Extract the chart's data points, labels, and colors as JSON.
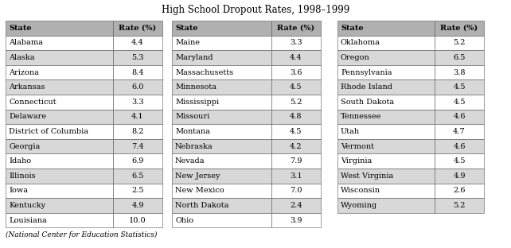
{
  "title": "High School Dropout Rates, 1998–1999",
  "footnote": "(National Center for Education Statistics)",
  "table1": {
    "headers": [
      "State",
      "Rate (%)"
    ],
    "rows": [
      [
        "Alabama",
        "4.4"
      ],
      [
        "Alaska",
        "5.3"
      ],
      [
        "Arizona",
        "8.4"
      ],
      [
        "Arkansas",
        "6.0"
      ],
      [
        "Connecticut",
        "3.3"
      ],
      [
        "Delaware",
        "4.1"
      ],
      [
        "District of Columbia",
        "8.2"
      ],
      [
        "Georgia",
        "7.4"
      ],
      [
        "Idaho",
        "6.9"
      ],
      [
        "Illinois",
        "6.5"
      ],
      [
        "Iowa",
        "2.5"
      ],
      [
        "Kentucky",
        "4.9"
      ],
      [
        "Louisiana",
        "10.0"
      ]
    ]
  },
  "table2": {
    "headers": [
      "State",
      "Rate (%)"
    ],
    "rows": [
      [
        "Maine",
        "3.3"
      ],
      [
        "Maryland",
        "4.4"
      ],
      [
        "Massachusetts",
        "3.6"
      ],
      [
        "Minnesota",
        "4.5"
      ],
      [
        "Mississippi",
        "5.2"
      ],
      [
        "Missouri",
        "4.8"
      ],
      [
        "Montana",
        "4.5"
      ],
      [
        "Nebraska",
        "4.2"
      ],
      [
        "Nevada",
        "7.9"
      ],
      [
        "New Jersey",
        "3.1"
      ],
      [
        "New Mexico",
        "7.0"
      ],
      [
        "North Dakota",
        "2.4"
      ],
      [
        "Ohio",
        "3.9"
      ]
    ]
  },
  "table3": {
    "headers": [
      "State",
      "Rate (%)"
    ],
    "rows": [
      [
        "Oklahoma",
        "5.2"
      ],
      [
        "Oregon",
        "6.5"
      ],
      [
        "Pennsylvania",
        "3.8"
      ],
      [
        "Rhode Island",
        "4.5"
      ],
      [
        "South Dakota",
        "4.5"
      ],
      [
        "Tennessee",
        "4.6"
      ],
      [
        "Utah",
        "4.7"
      ],
      [
        "Vermont",
        "4.6"
      ],
      [
        "Virginia",
        "4.5"
      ],
      [
        "West Virginia",
        "4.9"
      ],
      [
        "Wisconsin",
        "2.6"
      ],
      [
        "Wyoming",
        "5.2"
      ]
    ]
  },
  "header_bg": "#b0b0b0",
  "row_bg_light": "#ffffff",
  "row_bg_dark": "#d8d8d8",
  "border_color": "#555555",
  "text_color": "#000000",
  "title_fontsize": 8.5,
  "table_fontsize": 7.0,
  "footnote_fontsize": 6.5,
  "fig_width": 6.42,
  "fig_height": 3.12,
  "dpi": 100
}
